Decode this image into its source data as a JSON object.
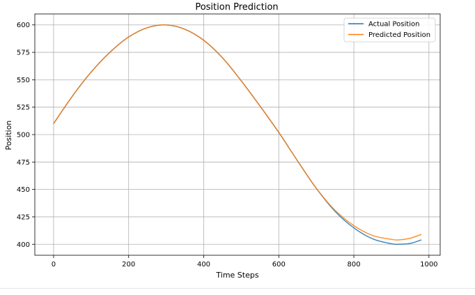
{
  "chart_data": {
    "type": "line",
    "title": "Position Prediction",
    "xlabel": "Time Steps",
    "ylabel": "Position",
    "xlim": [
      -50,
      1030
    ],
    "ylim": [
      390,
      610
    ],
    "xticks": [
      0,
      200,
      400,
      600,
      800,
      1000
    ],
    "yticks": [
      400,
      425,
      450,
      475,
      500,
      525,
      550,
      575,
      600
    ],
    "grid": true,
    "legend": "top-right",
    "series": [
      {
        "name": "Actual Position",
        "color": "#1f77b4",
        "points": [
          [
            0,
            510
          ],
          [
            50,
            535
          ],
          [
            100,
            557
          ],
          [
            150,
            575
          ],
          [
            200,
            589
          ],
          [
            250,
            597.5
          ],
          [
            300,
            600
          ],
          [
            350,
            596
          ],
          [
            400,
            586
          ],
          [
            450,
            570
          ],
          [
            500,
            549
          ],
          [
            550,
            526
          ],
          [
            600,
            502
          ],
          [
            650,
            476
          ],
          [
            700,
            451
          ],
          [
            750,
            430
          ],
          [
            800,
            415
          ],
          [
            850,
            405
          ],
          [
            900,
            400.5
          ],
          [
            920,
            400
          ],
          [
            950,
            400.8
          ],
          [
            980,
            404
          ]
        ]
      },
      {
        "name": "Predicted Position",
        "color": "#ff7f0e",
        "points": [
          [
            0,
            510
          ],
          [
            50,
            535
          ],
          [
            100,
            557
          ],
          [
            150,
            575
          ],
          [
            200,
            589
          ],
          [
            250,
            597.5
          ],
          [
            300,
            600
          ],
          [
            350,
            596
          ],
          [
            400,
            586
          ],
          [
            450,
            570
          ],
          [
            500,
            549
          ],
          [
            550,
            526
          ],
          [
            600,
            502
          ],
          [
            650,
            476
          ],
          [
            700,
            451
          ],
          [
            750,
            431
          ],
          [
            800,
            417
          ],
          [
            850,
            408
          ],
          [
            900,
            404.5
          ],
          [
            920,
            404
          ],
          [
            950,
            405.5
          ],
          [
            980,
            409
          ]
        ]
      }
    ]
  }
}
